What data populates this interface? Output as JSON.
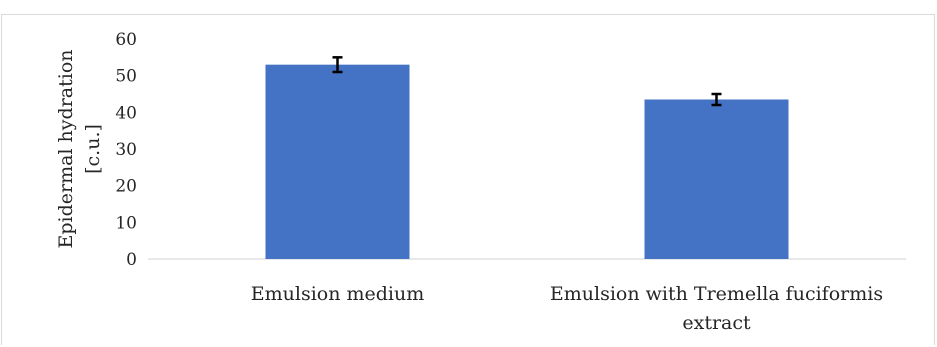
{
  "chart_data": {
    "type": "bar",
    "categories": [
      "Emulsion medium",
      "Emulsion with Tremella fuciformis extract"
    ],
    "category_label_lines": [
      [
        "Emulsion medium"
      ],
      [
        "Emulsion with Tremella fuciformis",
        "extract"
      ]
    ],
    "values": [
      53,
      43.5
    ],
    "error": [
      2,
      1.5
    ],
    "ylabel_lines": [
      "Epidermal hydration",
      "[c.u.]"
    ],
    "ylim": [
      0,
      60
    ],
    "yticks": [
      0,
      10,
      20,
      30,
      40,
      50,
      60
    ],
    "bar_color": "#4472c4",
    "error_color": "#000000",
    "axis_color": "#d9d9d9",
    "grid": false,
    "legend": "none"
  }
}
